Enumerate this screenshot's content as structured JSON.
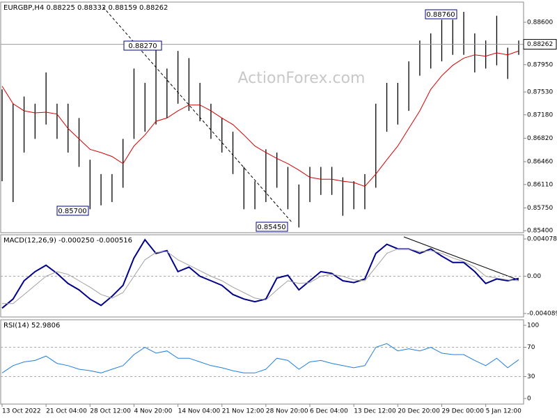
{
  "chart_data": [
    {
      "type": "hlbars",
      "title": "EURGBP,H4  0.88225 0.88332 0.88159 0.88262",
      "watermark": "ActionForex.com",
      "annotations": [
        "0.88270",
        "0.85700",
        "0.85450",
        "0.88760"
      ],
      "last_price": 0.88262,
      "color": "#000000",
      "ma_color": "#d40000",
      "high": [
        0.8757,
        0.8735,
        0.8746,
        0.8735,
        0.8783,
        0.8735,
        0.8735,
        0.8713,
        0.8649,
        0.8627,
        0.8627,
        0.8681,
        0.8789,
        0.8767,
        0.8827,
        0.8789,
        0.8816,
        0.8805,
        0.8767,
        0.8735,
        0.8713,
        0.8692,
        0.8638,
        0.8616,
        0.8665,
        0.866,
        0.8638,
        0.8611,
        0.8638,
        0.8638,
        0.8638,
        0.8622,
        0.8616,
        0.8627,
        0.8735,
        0.8767,
        0.8767,
        0.88,
        0.8832,
        0.8843,
        0.8864,
        0.8864,
        0.8876,
        0.8843,
        0.8832,
        0.887,
        0.8821,
        0.8832
      ],
      "low": [
        0.8616,
        0.8584,
        0.866,
        0.8681,
        0.8703,
        0.8681,
        0.866,
        0.8638,
        0.8573,
        0.8579,
        0.8584,
        0.8606,
        0.8681,
        0.8692,
        0.8703,
        0.8713,
        0.8735,
        0.8724,
        0.8708,
        0.8681,
        0.866,
        0.8627,
        0.8573,
        0.8573,
        0.8584,
        0.8606,
        0.8573,
        0.8545,
        0.8584,
        0.8595,
        0.8595,
        0.8563,
        0.8573,
        0.8573,
        0.8606,
        0.8692,
        0.8703,
        0.8724,
        0.8778,
        0.8789,
        0.88,
        0.881,
        0.881,
        0.8783,
        0.8789,
        0.8794,
        0.8773,
        0.881
      ],
      "ma": [
        0.8762,
        0.8735,
        0.8724,
        0.8721,
        0.8722,
        0.8719,
        0.8697,
        0.8681,
        0.8665,
        0.866,
        0.8654,
        0.8643,
        0.867,
        0.8687,
        0.8708,
        0.8713,
        0.8724,
        0.8733,
        0.8733,
        0.8724,
        0.8713,
        0.8703,
        0.8687,
        0.867,
        0.866,
        0.8651,
        0.8643,
        0.8633,
        0.8622,
        0.8619,
        0.8619,
        0.8616,
        0.8614,
        0.8608,
        0.8627,
        0.8649,
        0.867,
        0.8697,
        0.8724,
        0.8757,
        0.8778,
        0.8794,
        0.8805,
        0.881,
        0.8808,
        0.8813,
        0.881,
        0.8816
      ],
      "ylim": [
        0.8537,
        0.8891
      ],
      "yticks": [
        {
          "value": 0.886,
          "label": "0.88600"
        },
        {
          "value": 0.8795,
          "label": "0.87950"
        },
        {
          "value": 0.8753,
          "label": "0.87530"
        },
        {
          "value": 0.8718,
          "label": "0.87180"
        },
        {
          "value": 0.8682,
          "label": "0.86820"
        },
        {
          "value": 0.8646,
          "label": "0.86460"
        },
        {
          "value": 0.8611,
          "label": "0.86110"
        },
        {
          "value": 0.8575,
          "label": "0.85750"
        },
        {
          "value": 0.854,
          "label": "0.85400"
        }
      ]
    },
    {
      "type": "line",
      "title": "MACD(12,26,9) -0.000250 -0.000516",
      "series": [
        {
          "color": "#00008b",
          "width": 2,
          "values": [
            -0.0035,
            -0.0025,
            -0.0005,
            0.0005,
            0.0012,
            0.0003,
            -0.0008,
            -0.0015,
            -0.0025,
            -0.0032,
            -0.0022,
            -0.001,
            0.002,
            0.004,
            0.0025,
            0.0028,
            0.0005,
            0.001,
            0,
            -0.0005,
            -0.001,
            -0.002,
            -0.0025,
            -0.0028,
            -0.0025,
            -0.0002,
            0.0001,
            -0.0015,
            -0.0005,
            0.0005,
            0.0003,
            -0.0005,
            -0.0007,
            -0.0003,
            0.0025,
            0.0035,
            0.003,
            0.003,
            0.0025,
            0.003,
            0.0022,
            0.0015,
            0.0015,
            0.0005,
            -0.0008,
            -0.0003,
            -0.0005,
            -0.00025
          ]
        },
        {
          "color": "#a0a0a0",
          "width": 1,
          "values": [
            -0.003,
            -0.003,
            -0.002,
            -0.001,
            0,
            0.0005,
            0.0002,
            -0.0005,
            -0.0012,
            -0.002,
            -0.0024,
            -0.0018,
            0,
            0.0018,
            0.0026,
            0.0027,
            0.0018,
            0.0012,
            0.0006,
            0,
            -0.0005,
            -0.0012,
            -0.0018,
            -0.0024,
            -0.0026,
            -0.0015,
            -0.0005,
            -0.0008,
            -0.0007,
            0,
            0.0002,
            0,
            -0.0004,
            -0.0005,
            0.001,
            0.0025,
            0.003,
            0.003,
            0.0027,
            0.0028,
            0.0025,
            0.002,
            0.0016,
            0.001,
            0,
            -0.0002,
            -0.0004,
            -0.0005
          ]
        }
      ],
      "ylim": [
        -0.00447,
        0.00454
      ],
      "yticks": [
        0.004078,
        {
          "value": 0,
          "label": "0.00"
        },
        -0.004089
      ]
    },
    {
      "type": "line",
      "title": "RSI(14) 52.9806",
      "categories": [
        "13 Oct 2022",
        null,
        null,
        null,
        "21 Oct 04:00",
        null,
        null,
        null,
        "28 Oct 12:00",
        null,
        null,
        null,
        "4 Nov 20:00",
        null,
        null,
        null,
        "14 Nov 04:00",
        null,
        null,
        null,
        "21 Nov 12:00",
        null,
        null,
        null,
        "28 Nov 20:00",
        null,
        null,
        null,
        "6 Dec 04:00",
        null,
        null,
        null,
        "13 Dec 12:00",
        null,
        null,
        null,
        "20 Dec 20:00",
        null,
        null,
        null,
        "29 Dec 00:00",
        null,
        null,
        null,
        "5 Jan 12:00",
        null,
        null,
        null
      ],
      "series": [
        {
          "color": "#1e7fe0",
          "width": 1,
          "values": [
            35,
            45,
            50,
            52,
            58,
            48,
            45,
            40,
            38,
            35,
            40,
            45,
            60,
            70,
            62,
            65,
            55,
            55,
            50,
            45,
            42,
            38,
            35,
            35,
            40,
            55,
            52,
            40,
            50,
            52,
            48,
            45,
            42,
            45,
            70,
            75,
            65,
            68,
            65,
            70,
            62,
            60,
            60,
            52,
            45,
            55,
            42,
            53
          ]
        }
      ],
      "ylim": [
        -7.6,
        107.6
      ],
      "yticks": [
        100,
        70,
        30,
        0
      ],
      "levels": [
        70,
        30
      ]
    }
  ]
}
